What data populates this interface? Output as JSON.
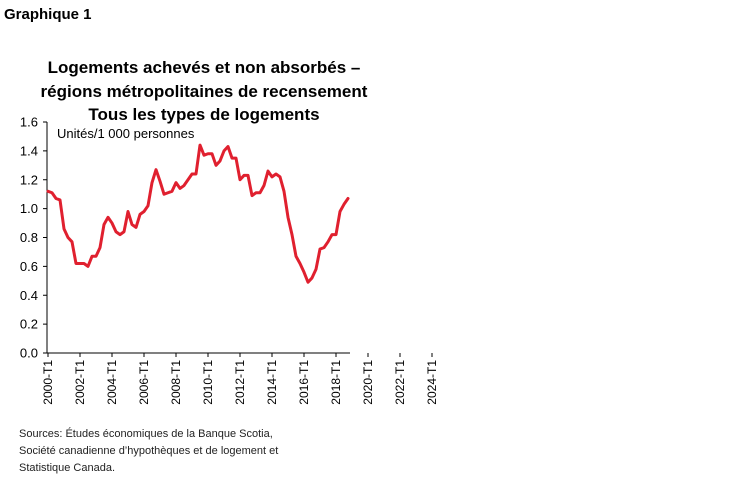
{
  "header": {
    "graph_label": "Graphique 1"
  },
  "chart_data": {
    "type": "line",
    "title_lines": [
      "Logements achevés et non absorbés –",
      "régions métropolitaines de recensement",
      "Tous les types de logements"
    ],
    "ylabel": "Unités/1 000 personnes",
    "ylim": [
      0,
      1.6
    ],
    "y_ticks": [
      "0.0",
      "0.2",
      "0.4",
      "0.6",
      "0.8",
      "1.0",
      "1.2",
      "1.4",
      "1.6"
    ],
    "x_ticks": [
      "2000-T1",
      "2002-T1",
      "2004-T1",
      "2006-T1",
      "2008-T1",
      "2010-T1",
      "2012-T1",
      "2014-T1",
      "2016-T1",
      "2018-T1",
      "2020-T1",
      "2022-T1",
      "2024-T1"
    ],
    "grid": false,
    "line_color": "#e0202f",
    "series": [
      {
        "values": [
          1.12,
          1.11,
          1.07,
          1.06,
          0.86,
          0.8,
          0.77,
          0.62,
          0.62,
          0.62,
          0.6,
          0.67,
          0.67,
          0.73,
          0.89,
          0.94,
          0.9,
          0.84,
          0.82,
          0.84,
          0.98,
          0.89,
          0.87,
          0.96,
          0.98,
          1.02,
          1.18,
          1.27,
          1.19,
          1.1,
          1.11,
          1.12,
          1.18,
          1.14,
          1.16,
          1.2,
          1.24,
          1.24,
          1.44,
          1.37,
          1.38,
          1.38,
          1.3,
          1.33,
          1.4,
          1.43,
          1.35,
          1.35,
          1.2,
          1.23,
          1.23,
          1.09,
          1.11,
          1.11,
          1.16,
          1.26,
          1.22,
          1.24,
          1.22,
          1.12,
          0.94,
          0.82,
          0.67,
          0.62,
          0.56,
          0.49,
          0.52,
          0.58,
          0.72,
          0.73,
          0.77,
          0.82,
          0.82,
          0.98,
          1.03,
          1.07
        ]
      }
    ],
    "sources": [
      "Sources: Études économiques de la Banque Scotia,",
      "Société canadienne d’hypothèques et de logement et",
      "Statistique Canada."
    ]
  }
}
